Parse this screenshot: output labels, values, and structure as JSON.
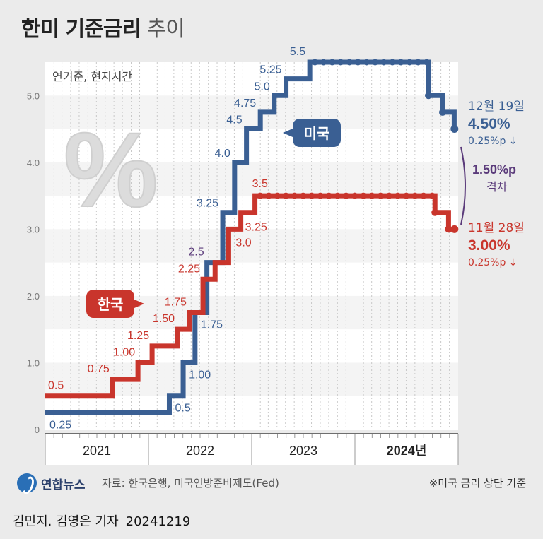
{
  "title_bold": "한미 기준금리",
  "title_light": "추이",
  "subtitle": "연기준, 현지시간",
  "byline_name": "김민지. 김영은 기자",
  "byline_date": "20241219",
  "source": "자료: 한국은행, 미국연방준비제도(Fed)",
  "note": "※미국 금리 상단 기준",
  "logo_text": "연합뉴스",
  "colors": {
    "us": "#3a5f93",
    "kr": "#c9352c",
    "gap": "#5a3a7a",
    "dot": "#ffffff"
  },
  "chart_data": {
    "type": "line",
    "title": "한미 기준금리 추이",
    "xlabel": "",
    "ylabel": "",
    "ylim": [
      0,
      5.5
    ],
    "yticks": [
      "0",
      "1.0",
      "2.0",
      "3.0",
      "4.0",
      "5.0"
    ],
    "year_labels": [
      "2021",
      "2022",
      "2023",
      "2024년"
    ],
    "step": true,
    "series": [
      {
        "name": "미국",
        "key": "us",
        "x": [
          "2021-01-01",
          "2022-03-16",
          "2022-05-04",
          "2022-06-15",
          "2022-07-27",
          "2022-09-21",
          "2022-11-02",
          "2022-12-14",
          "2023-02-01",
          "2023-03-22",
          "2023-05-03",
          "2023-07-26",
          "2024-09-18",
          "2024-11-07",
          "2024-12-18",
          "2024-12-19"
        ],
        "y": [
          0.25,
          0.5,
          1.0,
          1.75,
          2.5,
          3.25,
          4.0,
          4.5,
          4.75,
          5.0,
          5.25,
          5.5,
          5.0,
          4.75,
          4.5,
          4.5
        ],
        "labels": [
          "0.25",
          "0.5",
          "1.00",
          "1.75",
          "2.5",
          "3.25",
          "4.0",
          "4.5",
          "4.75",
          "5.0",
          "5.25",
          "5.5",
          "",
          "",
          "",
          ""
        ],
        "end_label_date": "12월 19일",
        "end_label_value": "4.50%",
        "end_label_change": "0.25%p ↓"
      },
      {
        "name": "한국",
        "key": "kr",
        "x": [
          "2021-01-01",
          "2021-08-26",
          "2021-11-25",
          "2022-01-14",
          "2022-04-14",
          "2022-05-26",
          "2022-07-13",
          "2022-08-25",
          "2022-10-12",
          "2022-11-24",
          "2023-01-13",
          "2024-10-11",
          "2024-11-28",
          "2024-12-19"
        ],
        "y": [
          0.5,
          0.75,
          1.0,
          1.25,
          1.5,
          1.75,
          2.25,
          2.5,
          3.0,
          3.25,
          3.5,
          3.25,
          3.0,
          3.0
        ],
        "labels": [
          "0.5",
          "0.75",
          "1.00",
          "1.25",
          "1.50",
          "1.75",
          "2.25",
          "",
          "3.0",
          "3.25",
          "3.5",
          "",
          "",
          ""
        ],
        "end_label_date": "11월 28일",
        "end_label_value": "3.00%",
        "end_label_change": "0.25%p ↓"
      }
    ],
    "gap_label_value": "1.50%p",
    "gap_label_text": "격차"
  }
}
